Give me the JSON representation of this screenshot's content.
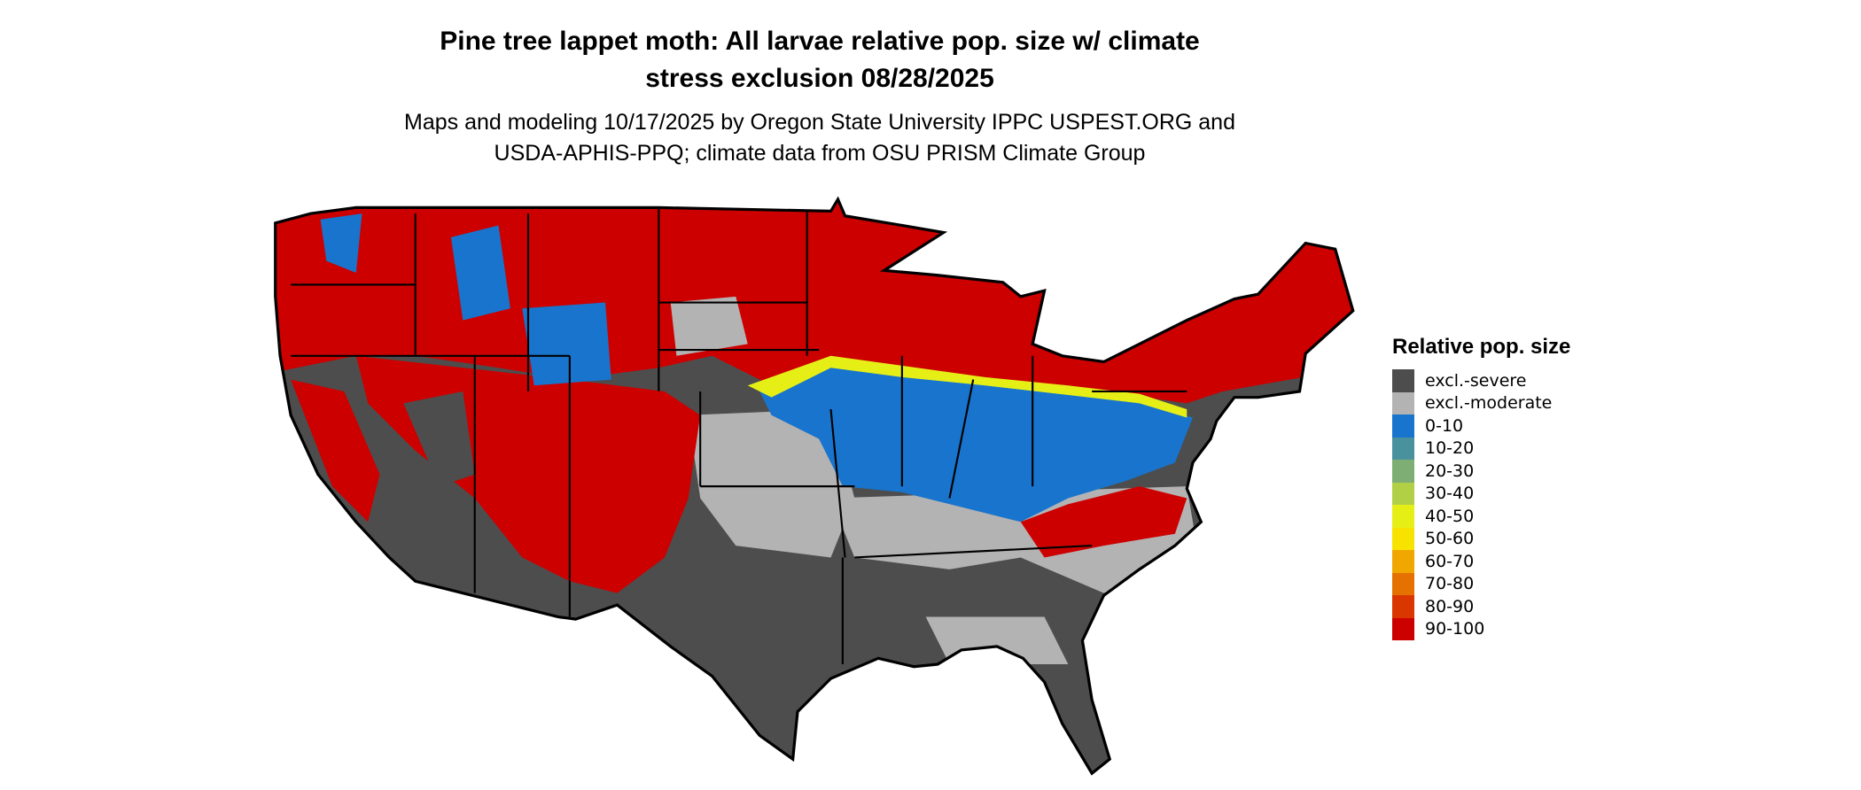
{
  "title": [
    "Pine tree lappet moth: All larvae relative pop. size w/ climate",
    "stress exclusion 08/28/2025"
  ],
  "subtitle": [
    "Maps and modeling 10/17/2025 by Oregon State University IPPC USPEST.ORG and",
    "USDA-APHIS-PPQ; climate data from OSU PRISM Climate Group"
  ],
  "map": {
    "region": "Contiguous United States",
    "border_color": "#000000"
  },
  "legend": {
    "title": "Relative pop. size",
    "items": [
      {
        "label": "excl.-severe",
        "color": "#4d4d4d"
      },
      {
        "label": "excl.-moderate",
        "color": "#b3b3b3"
      },
      {
        "label": "0-10",
        "color": "#1874cd"
      },
      {
        "label": "10-20",
        "color": "#4a919e"
      },
      {
        "label": "20-30",
        "color": "#7fae74"
      },
      {
        "label": "30-40",
        "color": "#b2d046"
      },
      {
        "label": "40-50",
        "color": "#e5ef16"
      },
      {
        "label": "50-60",
        "color": "#f8e300"
      },
      {
        "label": "60-70",
        "color": "#f0a800"
      },
      {
        "label": "70-80",
        "color": "#e57200"
      },
      {
        "label": "80-90",
        "color": "#da3600"
      },
      {
        "label": "90-100",
        "color": "#cd0000"
      }
    ]
  }
}
